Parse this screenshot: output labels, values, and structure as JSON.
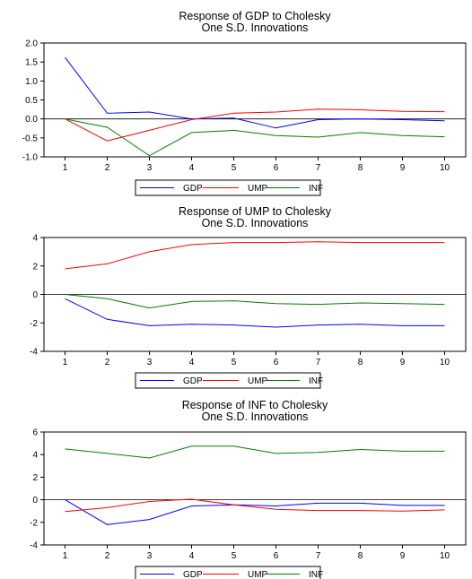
{
  "chart_data": [
    {
      "type": "line",
      "title": "Response of GDP to Cholesky",
      "subtitle": "One S.D. Innovations",
      "xlabel": "",
      "ylabel": "",
      "x": [
        1,
        2,
        3,
        4,
        5,
        6,
        7,
        8,
        9,
        10
      ],
      "xticks": [
        "1",
        "2",
        "3",
        "4",
        "5",
        "6",
        "7",
        "8",
        "9",
        "10"
      ],
      "ylim": [
        -1.0,
        2.0
      ],
      "yticks": [
        "2.0",
        "1.5",
        "1.0",
        "0.5",
        "0.0",
        "-0.5",
        "-1.0"
      ],
      "ytick_values": [
        2.0,
        1.5,
        1.0,
        0.5,
        0.0,
        -0.5,
        -1.0
      ],
      "legend_position": "bottom",
      "series": [
        {
          "name": "GDP",
          "color": "#0000ff",
          "values": [
            1.62,
            0.15,
            0.18,
            0.0,
            0.02,
            -0.24,
            -0.02,
            0.0,
            -0.02,
            -0.05
          ]
        },
        {
          "name": "UMP",
          "color": "#ff0000",
          "values": [
            0.0,
            -0.58,
            -0.3,
            -0.02,
            0.15,
            0.18,
            0.26,
            0.24,
            0.2,
            0.19
          ]
        },
        {
          "name": "INF",
          "color": "#008000",
          "values": [
            0.0,
            -0.22,
            -0.97,
            -0.36,
            -0.3,
            -0.44,
            -0.48,
            -0.36,
            -0.44,
            -0.47
          ]
        }
      ]
    },
    {
      "type": "line",
      "title": "Response of UMP to Cholesky",
      "subtitle": "One S.D. Innovations",
      "xlabel": "",
      "ylabel": "",
      "x": [
        1,
        2,
        3,
        4,
        5,
        6,
        7,
        8,
        9,
        10
      ],
      "xticks": [
        "1",
        "2",
        "3",
        "4",
        "5",
        "6",
        "7",
        "8",
        "9",
        "10"
      ],
      "ylim": [
        -4,
        4
      ],
      "yticks": [
        "4",
        "2",
        "0",
        "-2",
        "-4"
      ],
      "ytick_values": [
        4,
        2,
        0,
        -2,
        -4
      ],
      "legend_position": "bottom",
      "series": [
        {
          "name": "GDP",
          "color": "#0000ff",
          "values": [
            -0.3,
            -1.75,
            -2.2,
            -2.1,
            -2.15,
            -2.3,
            -2.15,
            -2.1,
            -2.2,
            -2.2
          ]
        },
        {
          "name": "UMP",
          "color": "#ff0000",
          "values": [
            1.8,
            2.15,
            3.0,
            3.5,
            3.65,
            3.65,
            3.7,
            3.65,
            3.65,
            3.65
          ]
        },
        {
          "name": "INF",
          "color": "#008000",
          "values": [
            0.0,
            -0.3,
            -0.95,
            -0.5,
            -0.45,
            -0.65,
            -0.7,
            -0.6,
            -0.65,
            -0.7
          ]
        }
      ]
    },
    {
      "type": "line",
      "title": "Response of INF to Cholesky",
      "subtitle": "One S.D. Innovations",
      "xlabel": "",
      "ylabel": "",
      "x": [
        1,
        2,
        3,
        4,
        5,
        6,
        7,
        8,
        9,
        10
      ],
      "xticks": [
        "1",
        "2",
        "3",
        "4",
        "5",
        "6",
        "7",
        "8",
        "9",
        "10"
      ],
      "ylim": [
        -4,
        6
      ],
      "yticks": [
        "6",
        "4",
        "2",
        "0",
        "-2",
        "-4"
      ],
      "ytick_values": [
        6,
        4,
        2,
        0,
        -2,
        -4
      ],
      "legend_position": "bottom",
      "series": [
        {
          "name": "GDP",
          "color": "#0000ff",
          "values": [
            0.0,
            -2.2,
            -1.75,
            -0.55,
            -0.45,
            -0.55,
            -0.3,
            -0.3,
            -0.5,
            -0.5
          ]
        },
        {
          "name": "UMP",
          "color": "#ff0000",
          "values": [
            -1.05,
            -0.7,
            -0.15,
            0.05,
            -0.45,
            -0.85,
            -0.95,
            -0.95,
            -1.0,
            -0.9
          ]
        },
        {
          "name": "INF",
          "color": "#008000",
          "values": [
            4.5,
            4.1,
            3.7,
            4.75,
            4.75,
            4.1,
            4.2,
            4.45,
            4.3,
            4.3
          ]
        }
      ]
    }
  ]
}
